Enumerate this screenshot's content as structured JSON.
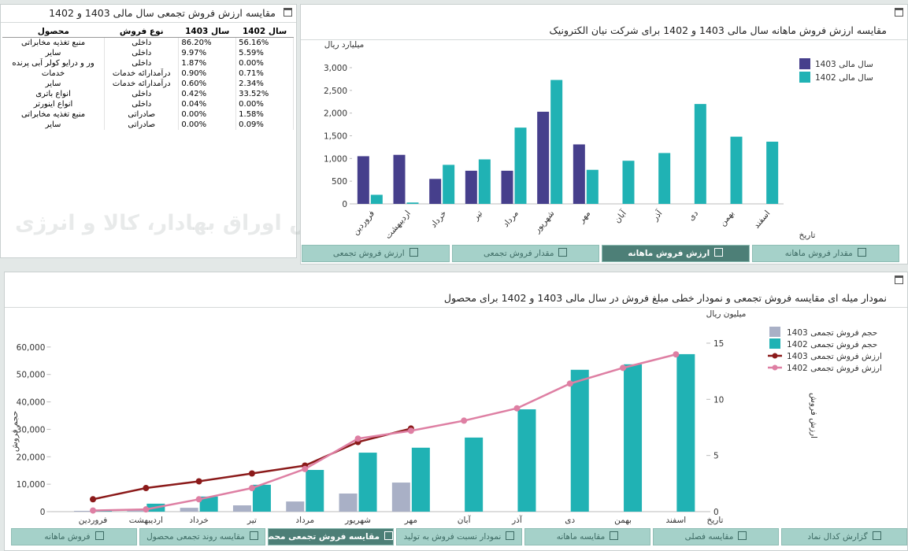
{
  "watermark": "کارگزار بورس اوراق بهادار، کالا و انرژی",
  "table": {
    "title": "مقایسه ارزش فروش تجمعی سال مالی 1403 و 1402",
    "header": [
      "محصول",
      "نوع فروش",
      "سال 1403",
      "سال 1402"
    ],
    "rows": [
      [
        "منبع تغذیه مخابراتی",
        "داخلی",
        "86.20%",
        "56.16%"
      ],
      [
        "سایر",
        "داخلی",
        "9.97%",
        "5.59%"
      ],
      [
        "ور و درایو کولر آبی پرنده",
        "داخلی",
        "1.87%",
        "0.00%"
      ],
      [
        "خدمات",
        "درآمدارائه خدمات",
        "0.90%",
        "0.71%"
      ],
      [
        "سایر",
        "درآمدارائه خدمات",
        "0.60%",
        "2.34%"
      ],
      [
        "انواع باتری",
        "داخلی",
        "0.42%",
        "33.52%"
      ],
      [
        "انواع اینورتر",
        "داخلی",
        "0.04%",
        "0.00%"
      ],
      [
        "منبع تغذیه مخابراتی",
        "صادراتی",
        "0.00%",
        "1.58%"
      ],
      [
        "سایر",
        "صادراتی",
        "0.00%",
        "0.09%"
      ]
    ]
  },
  "chart_data": [
    {
      "type": "bar",
      "title": "مقایسه ارزش فروش ماهانه سال مالی 1403 و 1402 برای شرکت نیان الکترونیک",
      "y_label": "میلیارد ریال",
      "x_label": "تاریخ",
      "categories": [
        "فروردین",
        "اردیبهشت",
        "خرداد",
        "تیر",
        "مرداد",
        "شهریور",
        "مهر",
        "آبان",
        "آذر",
        "دی",
        "بهمن",
        "اسفند"
      ],
      "series": [
        {
          "name": "سال مالی 1403",
          "color": "#463f8c",
          "values": [
            1050,
            1080,
            550,
            730,
            730,
            2030,
            1310,
            null,
            null,
            null,
            null,
            null
          ]
        },
        {
          "name": "سال مالی 1402",
          "color": "#20b2b4",
          "values": [
            200,
            30,
            860,
            980,
            1680,
            2730,
            750,
            950,
            1120,
            2200,
            1480,
            1370
          ]
        }
      ],
      "ylim": [
        0,
        3000
      ],
      "yticks": [
        0,
        500,
        {
          "value": 1000,
          "label": "1,000"
        },
        {
          "value": 1500,
          "label": "1,500"
        },
        {
          "value": 2000,
          "label": "2,000"
        },
        {
          "value": 2500,
          "label": "2,500"
        },
        {
          "value": 3000,
          "label": "3,000"
        }
      ],
      "tabs": [
        "ارزش فروش تجمعی",
        "مقدار فروش تجمعی",
        "ارزش فروش ماهانه",
        "مقدار فروش ماهانه"
      ],
      "active_tab": 2
    },
    {
      "type": "combo",
      "title": "نمودار میله ای مقایسه فروش تجمعی و نمودار خطی مبلغ فروش در سال مالی 1403 و 1402 برای محصول",
      "y_label": "حجم فروش",
      "y2_label": "ارزش فروش",
      "y2_unit": "میلیون ریال",
      "x_label": "تاریخ",
      "categories": [
        "فروردین",
        "اردیبهشت",
        "خرداد",
        "تیر",
        "مرداد",
        "شهریور",
        "مهر",
        "آبان",
        "آذر",
        "دی",
        "بهمن",
        "اسفند"
      ],
      "series": [
        {
          "name": "حجم فروش تجمعی 1403",
          "type": "bar",
          "color": "#a9b0c6",
          "values": [
            300,
            900,
            1400,
            2300,
            3700,
            6600,
            10600,
            null,
            null,
            null,
            null,
            null
          ]
        },
        {
          "name": "حجم فروش تجمعی 1402",
          "type": "bar",
          "color": "#20b2b4",
          "values": [
            500,
            2900,
            5500,
            9800,
            15200,
            21500,
            23300,
            27000,
            37300,
            51700,
            53700,
            57400
          ]
        },
        {
          "name": "ارزش فروش تجمعی 1403",
          "type": "line",
          "axis": "y2",
          "color": "#8b1a1a",
          "values": [
            1.1,
            2.1,
            2.7,
            3.4,
            4.1,
            6.2,
            7.4,
            null,
            null,
            null,
            null,
            null
          ]
        },
        {
          "name": "ارزش فروش تجمعی 1402",
          "type": "line",
          "axis": "y2",
          "color": "#de7fa3",
          "values": [
            0.1,
            0.2,
            1.1,
            2.1,
            3.8,
            6.5,
            7.2,
            8.1,
            9.2,
            11.4,
            12.8,
            14.0
          ]
        }
      ],
      "ylim": [
        0,
        70000
      ],
      "yticks": [
        0,
        {
          "value": 10000,
          "label": "10,000"
        },
        {
          "value": 20000,
          "label": "20,000"
        },
        {
          "value": 30000,
          "label": "30,000"
        },
        {
          "value": 40000,
          "label": "40,000"
        },
        {
          "value": 50000,
          "label": "50,000"
        },
        {
          "value": 60000,
          "label": "60,000"
        }
      ],
      "y2lim": [
        0,
        17.1
      ],
      "y2ticks": [
        0,
        5,
        10,
        15
      ],
      "tabs": [
        "فروش ماهانه",
        "مقایسه روند تجمعی محصول",
        "مقایسه فروش تجمعی محصول",
        "نمودار نسبت فروش به تولید",
        "مقایسه ماهانه",
        "مقایسه فصلی",
        "گزارش کدال نماد"
      ],
      "active_tab": 2
    }
  ]
}
